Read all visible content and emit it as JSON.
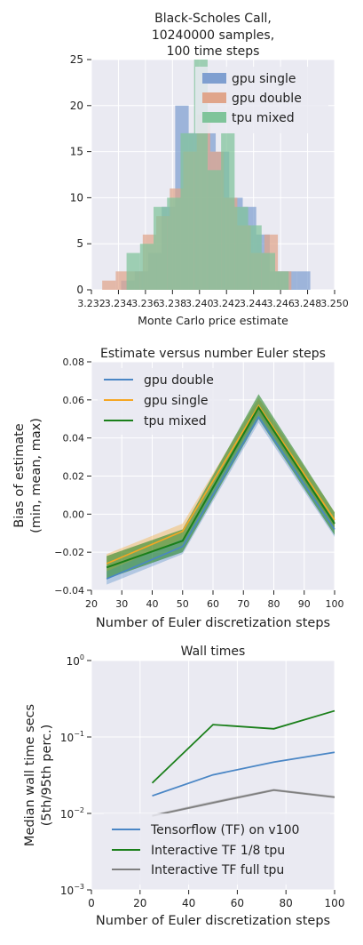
{
  "colors": {
    "bg_panel": "#eaeaf2",
    "grid": "#ffffff",
    "gpu_single_hist": "#7f9fd0",
    "gpu_double_hist": "#e0a58b",
    "tpu_mixed_hist": "#7fc49a",
    "gpu_double_line": "#4a86c5",
    "gpu_single_line": "#f5a623",
    "tpu_mixed_line": "#1a7f1a",
    "tf_v100": "#4a86c5",
    "tf_eighth_tpu": "#1a7f1a",
    "tf_full_tpu": "#7f7f7f"
  },
  "chart_data": [
    {
      "type": "histogram",
      "title": "Black-Scholes Call,\n10240000 samples,\n100 time steps",
      "title_lines": [
        "Black-Scholes Call,",
        "10240000 samples,",
        "100 time steps"
      ],
      "xlabel": "Monte Carlo price estimate",
      "ylabel": "",
      "xlim": [
        3.232,
        3.25
      ],
      "ylim": [
        0,
        25
      ],
      "x_ticks": [
        "3.232",
        "3.234",
        "3.236",
        "3.238",
        "3.240",
        "3.242",
        "3.244",
        "3.246",
        "3.248",
        "3.250"
      ],
      "y_ticks": [
        "0",
        "5",
        "10",
        "15",
        "20",
        "25"
      ],
      "legend": "top-right",
      "series": [
        {
          "name": "gpu single",
          "bins": [
            {
              "x0": 3.2342,
              "x1": 3.2352,
              "count": 1
            },
            {
              "x0": 3.2352,
              "x1": 3.2362,
              "count": 2
            },
            {
              "x0": 3.2362,
              "x1": 3.2372,
              "count": 4
            },
            {
              "x0": 3.2372,
              "x1": 3.2382,
              "count": 9
            },
            {
              "x0": 3.2382,
              "x1": 3.2392,
              "count": 20
            },
            {
              "x0": 3.2392,
              "x1": 3.2402,
              "count": 17
            },
            {
              "x0": 3.2402,
              "x1": 3.2412,
              "count": 17
            },
            {
              "x0": 3.2412,
              "x1": 3.2422,
              "count": 15
            },
            {
              "x0": 3.2422,
              "x1": 3.2432,
              "count": 10
            },
            {
              "x0": 3.2432,
              "x1": 3.2442,
              "count": 9
            },
            {
              "x0": 3.2442,
              "x1": 3.2452,
              "count": 6
            },
            {
              "x0": 3.2452,
              "x1": 3.2462,
              "count": 2
            },
            {
              "x0": 3.2462,
              "x1": 3.2472,
              "count": 2
            },
            {
              "x0": 3.2472,
              "x1": 3.2482,
              "count": 2
            }
          ]
        },
        {
          "name": "gpu double",
          "bins": [
            {
              "x0": 3.2328,
              "x1": 3.2338,
              "count": 1
            },
            {
              "x0": 3.2338,
              "x1": 3.2348,
              "count": 2
            },
            {
              "x0": 3.2348,
              "x1": 3.2358,
              "count": 2
            },
            {
              "x0": 3.2358,
              "x1": 3.2368,
              "count": 6
            },
            {
              "x0": 3.2368,
              "x1": 3.2378,
              "count": 8
            },
            {
              "x0": 3.2378,
              "x1": 3.2388,
              "count": 11
            },
            {
              "x0": 3.2388,
              "x1": 3.2398,
              "count": 15
            },
            {
              "x0": 3.2398,
              "x1": 3.2408,
              "count": 19
            },
            {
              "x0": 3.2408,
              "x1": 3.2418,
              "count": 15
            },
            {
              "x0": 3.2418,
              "x1": 3.2428,
              "count": 10
            },
            {
              "x0": 3.2428,
              "x1": 3.2438,
              "count": 7
            },
            {
              "x0": 3.2438,
              "x1": 3.2448,
              "count": 4
            },
            {
              "x0": 3.2448,
              "x1": 3.2458,
              "count": 6
            },
            {
              "x0": 3.2458,
              "x1": 3.2468,
              "count": 2
            }
          ]
        },
        {
          "name": "tpu mixed",
          "bins": [
            {
              "x0": 3.2346,
              "x1": 3.2356,
              "count": 4
            },
            {
              "x0": 3.2356,
              "x1": 3.2366,
              "count": 5
            },
            {
              "x0": 3.2366,
              "x1": 3.2376,
              "count": 9
            },
            {
              "x0": 3.2376,
              "x1": 3.2386,
              "count": 10
            },
            {
              "x0": 3.2386,
              "x1": 3.2396,
              "count": 17
            },
            {
              "x0": 3.2396,
              "x1": 3.2406,
              "count": 25
            },
            {
              "x0": 3.2406,
              "x1": 3.2416,
              "count": 13
            },
            {
              "x0": 3.2416,
              "x1": 3.2426,
              "count": 17
            },
            {
              "x0": 3.2426,
              "x1": 3.2436,
              "count": 9
            },
            {
              "x0": 3.2436,
              "x1": 3.2446,
              "count": 7
            },
            {
              "x0": 3.2446,
              "x1": 3.2456,
              "count": 4
            },
            {
              "x0": 3.2456,
              "x1": 3.2466,
              "count": 2
            }
          ]
        }
      ]
    },
    {
      "type": "line",
      "title": "Estimate versus number Euler steps",
      "xlabel": "Number of Euler discretization steps",
      "ylabel_lines": [
        "Bias of estimate",
        "(min, mean, max)"
      ],
      "xlim": [
        20,
        100
      ],
      "ylim": [
        -0.04,
        0.08
      ],
      "x_ticks": [
        "20",
        "30",
        "40",
        "50",
        "60",
        "70",
        "80",
        "90",
        "100"
      ],
      "y_ticks": [
        "−0.04",
        "−0.02",
        "0.00",
        "0.02",
        "0.04",
        "0.06",
        "0.08"
      ],
      "legend": "top-left",
      "x": [
        25,
        50,
        75,
        100
      ],
      "series": [
        {
          "name": "gpu double",
          "mean": [
            -0.034,
            -0.017,
            0.051,
            -0.008
          ],
          "min": [
            -0.037,
            -0.021,
            0.048,
            -0.012
          ],
          "max": [
            -0.03,
            -0.013,
            0.055,
            -0.004
          ]
        },
        {
          "name": "gpu single",
          "mean": [
            -0.026,
            -0.009,
            0.057,
            -0.003
          ],
          "min": [
            -0.03,
            -0.013,
            0.053,
            -0.007
          ],
          "max": [
            -0.021,
            -0.005,
            0.061,
            0.001
          ]
        },
        {
          "name": "tpu mixed",
          "mean": [
            -0.028,
            -0.014,
            0.056,
            -0.005
          ],
          "min": [
            -0.034,
            -0.02,
            0.05,
            -0.011
          ],
          "max": [
            -0.022,
            -0.008,
            0.063,
            0.001
          ]
        }
      ]
    },
    {
      "type": "line",
      "title": "Wall times",
      "xlabel": "Number of Euler discretization steps",
      "ylabel_lines": [
        "Median wall time secs",
        "(5th/95th perc.)"
      ],
      "xscale": "linear",
      "yscale": "log",
      "xlim": [
        0,
        100
      ],
      "ylim": [
        0.001,
        1
      ],
      "x_ticks": [
        "0",
        "20",
        "40",
        "60",
        "80",
        "100"
      ],
      "y_ticks": [
        {
          "base": "10",
          "exp": "−3",
          "value": 0.001
        },
        {
          "base": "10",
          "exp": "−2",
          "value": 0.01
        },
        {
          "base": "10",
          "exp": "−1",
          "value": 0.1
        },
        {
          "base": "10",
          "exp": "0",
          "value": 1
        }
      ],
      "legend": "bottom-right",
      "x": [
        25,
        50,
        75,
        100
      ],
      "series": [
        {
          "name": "Tensorflow (TF) on v100",
          "values": [
            0.017,
            0.032,
            0.047,
            0.063
          ]
        },
        {
          "name": "Interactive TF 1/8 tpu",
          "values": [
            0.025,
            0.145,
            0.128,
            0.22
          ]
        },
        {
          "name": "Interactive TF full tpu",
          "values": [
            0.0093,
            0.0138,
            0.0202,
            0.0163
          ],
          "low": [
            0.009,
            0.0133,
            0.0195,
            0.0158
          ],
          "high": [
            0.0097,
            0.0145,
            0.021,
            0.017
          ]
        }
      ]
    }
  ]
}
